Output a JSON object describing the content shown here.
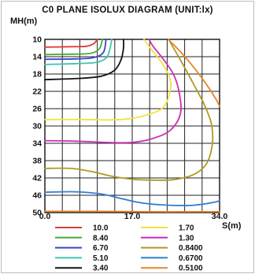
{
  "chart_data": {
    "type": "line",
    "title": "C0 PLANE ISOLUX DIAGRAM (UNIT:lx)",
    "ylabel": "MH(m)",
    "xlabel": "S(m)",
    "x_ticks": [
      "0.0",
      "17.0",
      "34.0"
    ],
    "y_ticks": [
      "10",
      "14",
      "18",
      "22",
      "26",
      "30",
      "34",
      "38",
      "42",
      "46",
      "50"
    ],
    "xlim": [
      0,
      34
    ],
    "ylim": [
      10,
      50
    ],
    "y_inverted": true,
    "grid": true,
    "legend_position": "bottom",
    "series": [
      {
        "name": "10.0",
        "color": "#e03a3a",
        "points": [
          [
            0,
            11.8
          ],
          [
            5,
            11.7
          ],
          [
            8,
            11.6
          ],
          [
            9.5,
            11.0
          ],
          [
            10.2,
            10
          ]
        ]
      },
      {
        "name": "8.40",
        "color": "#4caa3c",
        "points": [
          [
            0,
            13.5
          ],
          [
            6,
            13.4
          ],
          [
            9,
            13.2
          ],
          [
            10.6,
            12.2
          ],
          [
            11.2,
            10
          ]
        ]
      },
      {
        "name": "6.70",
        "color": "#3848c8",
        "points": [
          [
            0,
            14.6
          ],
          [
            6,
            14.5
          ],
          [
            9.5,
            14.2
          ],
          [
            11.4,
            13
          ],
          [
            11.9,
            10
          ]
        ]
      },
      {
        "name": "5.10",
        "color": "#3fc4b2",
        "points": [
          [
            0,
            15.8
          ],
          [
            6,
            15.6
          ],
          [
            10,
            15.3
          ],
          [
            12,
            14.2
          ],
          [
            12.7,
            12
          ],
          [
            13,
            10
          ]
        ]
      },
      {
        "name": "3.40",
        "color": "#111111",
        "points": [
          [
            0,
            19.3
          ],
          [
            7,
            19.0
          ],
          [
            11,
            18.5
          ],
          [
            13.5,
            17.2
          ],
          [
            14.8,
            14.8
          ],
          [
            15.3,
            12
          ],
          [
            15.3,
            10
          ]
        ]
      },
      {
        "name": "1.70",
        "color": "#f2e23e",
        "points": [
          [
            0,
            28.5
          ],
          [
            7,
            28.5
          ],
          [
            12,
            28.6
          ],
          [
            16,
            28.4
          ],
          [
            20,
            27.4
          ],
          [
            23.2,
            25.5
          ],
          [
            24.5,
            21
          ],
          [
            24,
            18
          ],
          [
            22.5,
            15
          ],
          [
            20.5,
            12
          ],
          [
            19.3,
            10
          ]
        ]
      },
      {
        "name": "1.30",
        "color": "#cc2fb2",
        "points": [
          [
            0,
            33.4
          ],
          [
            6,
            33.5
          ],
          [
            12,
            33.8
          ],
          [
            17,
            33.8
          ],
          [
            21,
            32.9
          ],
          [
            24.5,
            30.9
          ],
          [
            26.4,
            27
          ],
          [
            26.1,
            22
          ],
          [
            25,
            18
          ],
          [
            23,
            14.5
          ],
          [
            21,
            11.5
          ],
          [
            20.3,
            10
          ]
        ]
      },
      {
        "name": "0.8400",
        "color": "#b09820",
        "points": [
          [
            0,
            39.8
          ],
          [
            5,
            39.8
          ],
          [
            9,
            40.5
          ],
          [
            13,
            41.6
          ],
          [
            17,
            42.3
          ],
          [
            21,
            42.5
          ],
          [
            25,
            42.4
          ],
          [
            29,
            41.2
          ],
          [
            31.5,
            38.6
          ],
          [
            32.6,
            34
          ],
          [
            32.4,
            29.5
          ],
          [
            31,
            25
          ],
          [
            28.8,
            20
          ],
          [
            26.5,
            15
          ],
          [
            24.8,
            11.5
          ],
          [
            24.1,
            10
          ]
        ]
      },
      {
        "name": "0.6700",
        "color": "#2d7fd0",
        "points": [
          [
            0,
            45.3
          ],
          [
            6,
            45.2
          ],
          [
            11,
            45.7
          ],
          [
            15,
            46.8
          ],
          [
            19,
            47.8
          ],
          [
            24,
            48.3
          ],
          [
            29,
            48.3
          ],
          [
            33,
            47.6
          ],
          [
            34,
            47.2
          ]
        ]
      },
      {
        "name": "0.5100",
        "color": "#e8862a",
        "points": [
          [
            0,
            49.7
          ],
          [
            10,
            49.7
          ],
          [
            20,
            49.8
          ],
          [
            30,
            49.8
          ],
          [
            34,
            49.8
          ]
        ]
      },
      {
        "name": "0.5100",
        "color": "#e8862a",
        "points": [
          [
            24,
            10
          ],
          [
            26.5,
            13
          ],
          [
            29,
            16.5
          ],
          [
            31.5,
            20.5
          ],
          [
            33.4,
            24
          ],
          [
            34,
            25.5
          ]
        ]
      }
    ],
    "legend": [
      {
        "label": "10.0",
        "color": "#e03a3a"
      },
      {
        "label": "8.40",
        "color": "#4caa3c"
      },
      {
        "label": "6.70",
        "color": "#3848c8"
      },
      {
        "label": "5.10",
        "color": "#3fc4b2"
      },
      {
        "label": "3.40",
        "color": "#111111"
      },
      {
        "label": "1.70",
        "color": "#f2e23e"
      },
      {
        "label": "1.30",
        "color": "#cc2fb2"
      },
      {
        "label": "0.8400",
        "color": "#b09820"
      },
      {
        "label": "0.6700",
        "color": "#2d7fd0"
      },
      {
        "label": "0.5100",
        "color": "#e8862a"
      }
    ]
  }
}
